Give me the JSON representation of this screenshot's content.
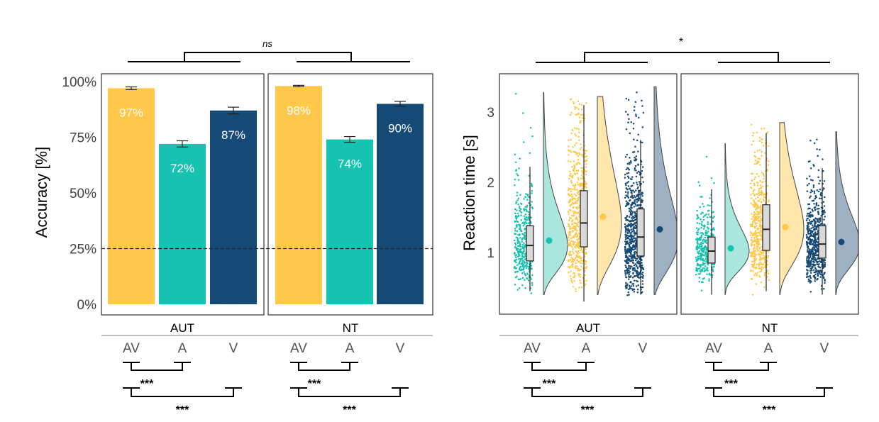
{
  "colors": {
    "AV": "#ffc84a",
    "A": "#16c3b0",
    "V": "#164a76",
    "AV_light": "#ffe3a4",
    "A_light": "#9fe3da",
    "V_light": "#94a9bd"
  },
  "chart_data": [
    {
      "type": "bar",
      "ylabel": "Accuracy [%]",
      "ylim": [
        0,
        100
      ],
      "yticks": [
        "0%",
        "25%",
        "50%",
        "75%",
        "100%"
      ],
      "ytick_values": [
        0,
        25,
        50,
        75,
        100
      ],
      "chance_level": 25,
      "categories": [
        "AV",
        "A",
        "V"
      ],
      "groups": [
        {
          "name": "AUT",
          "values": [
            97,
            72,
            87
          ],
          "value_labels": [
            "97%",
            "72%",
            "87%"
          ],
          "errors": [
            0.6,
            1.4,
            1.5
          ]
        },
        {
          "name": "NT",
          "values": [
            98,
            74,
            90
          ],
          "value_labels": [
            "98%",
            "74%",
            "90%"
          ],
          "errors": [
            0.3,
            1.3,
            1.1
          ]
        }
      ],
      "group_comparison": "ns",
      "pairwise": [
        {
          "pair": [
            "AV",
            "A"
          ],
          "label": "***"
        },
        {
          "pair": [
            "AV",
            "V"
          ],
          "label": "***"
        }
      ]
    },
    {
      "type": "raincloud",
      "ylabel": "Reaction time [s]",
      "ylim": [
        0.3,
        3.5
      ],
      "yticks": [
        "1",
        "2",
        "3"
      ],
      "ytick_values": [
        1,
        2,
        3
      ],
      "categories": [
        "AV",
        "A",
        "V"
      ],
      "groups": [
        {
          "name": "AUT",
          "series": [
            {
              "condition": "A",
              "q1": 0.88,
              "median": 1.1,
              "q3": 1.38,
              "whisker_low": 0.45,
              "whisker_high": 2.22,
              "mean": 1.17,
              "max": 3.28
            },
            {
              "condition": "AV",
              "q1": 1.08,
              "median": 1.42,
              "q3": 1.88,
              "whisker_low": 0.3,
              "whisker_high": 3.1,
              "mean": 1.51,
              "max": 3.22
            },
            {
              "condition": "V",
              "q1": 0.95,
              "median": 1.22,
              "q3": 1.62,
              "whisker_low": 0.4,
              "whisker_high": 2.6,
              "mean": 1.33,
              "max": 3.36
            }
          ]
        },
        {
          "name": "NT",
          "series": [
            {
              "condition": "A",
              "q1": 0.85,
              "median": 1.02,
              "q3": 1.22,
              "whisker_low": 0.4,
              "whisker_high": 1.9,
              "mean": 1.06,
              "max": 2.55
            },
            {
              "condition": "AV",
              "q1": 1.03,
              "median": 1.33,
              "q3": 1.68,
              "whisker_low": 0.45,
              "whisker_high": 2.7,
              "mean": 1.36,
              "max": 2.85
            },
            {
              "condition": "V",
              "q1": 0.92,
              "median": 1.12,
              "q3": 1.38,
              "whisker_low": 0.4,
              "whisker_high": 2.2,
              "mean": 1.15,
              "max": 2.72
            }
          ]
        }
      ],
      "group_comparison": "*",
      "pairwise": [
        {
          "pair": [
            "AV",
            "A"
          ],
          "label": "***"
        },
        {
          "pair": [
            "AV",
            "V"
          ],
          "label": "***"
        }
      ]
    }
  ]
}
